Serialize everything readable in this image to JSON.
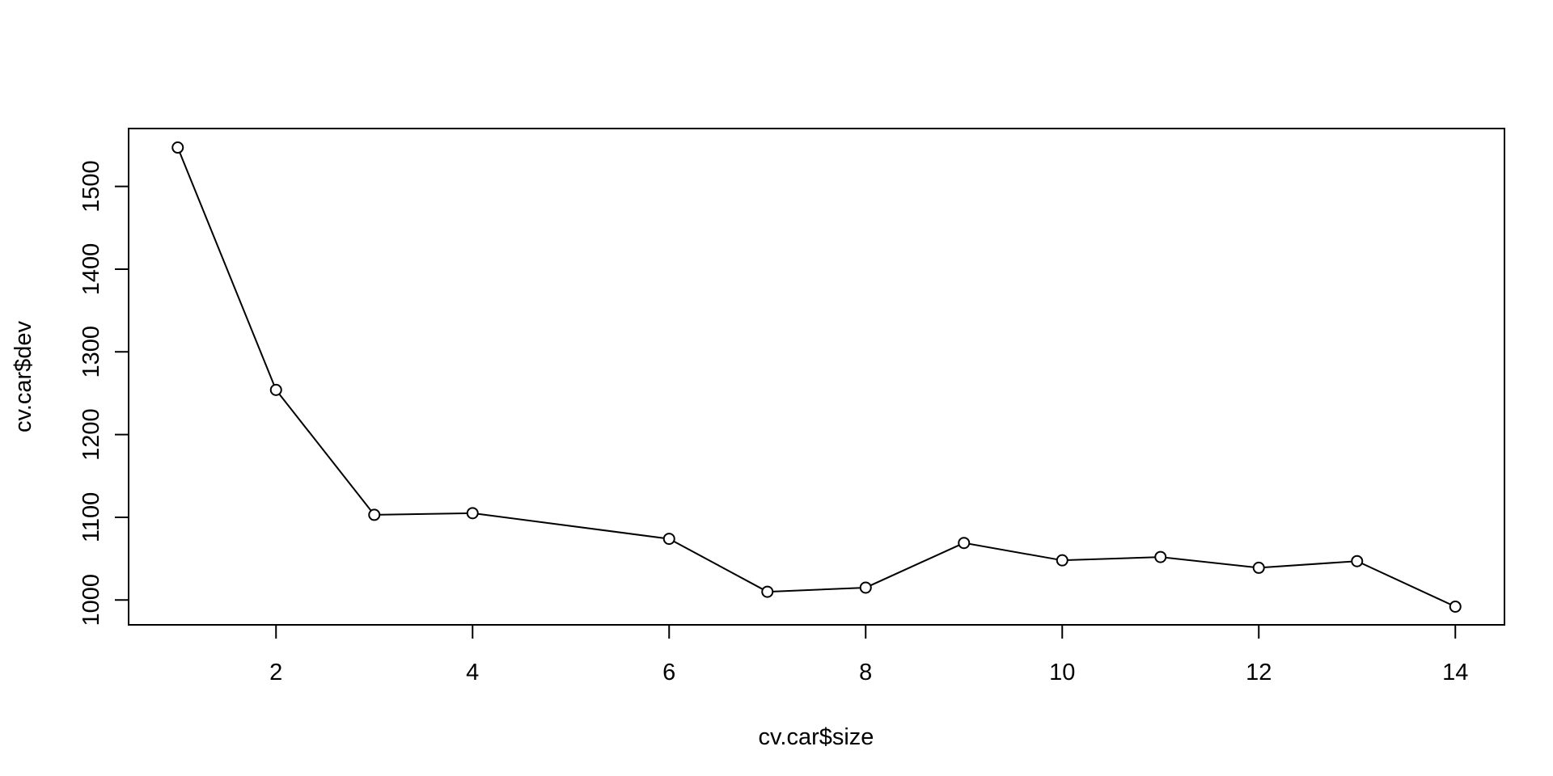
{
  "chart_data": {
    "type": "line",
    "markers": "open-circle",
    "title": "",
    "xlabel": "cv.car$size",
    "ylabel": "cv.car$dev",
    "x": [
      1,
      2,
      3,
      4,
      6,
      7,
      8,
      9,
      10,
      11,
      12,
      13,
      14
    ],
    "series": [
      {
        "values": [
          1547,
          1254,
          1103,
          1105,
          1074,
          1010,
          1015,
          1069,
          1048,
          1052,
          1039,
          1047,
          992
        ]
      }
    ],
    "xlim": [
      0.5,
      14.5
    ],
    "ylim": [
      970,
      1570
    ],
    "xticks": [
      2,
      4,
      6,
      8,
      10,
      12,
      14
    ],
    "yticks": [
      1000,
      1100,
      1200,
      1300,
      1400,
      1500
    ],
    "xtick_labels": [
      "2",
      "4",
      "6",
      "8",
      "10",
      "12",
      "14"
    ],
    "ytick_labels": [
      "1000",
      "1100",
      "1200",
      "1300",
      "1400",
      "1500"
    ],
    "grid": false,
    "legend": "none",
    "line_color": "#000000"
  }
}
